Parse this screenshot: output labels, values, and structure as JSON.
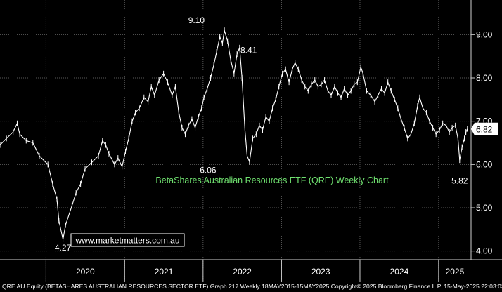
{
  "chart_data": {
    "type": "line",
    "title": "BetaShares Australian Resources ETF (QRE) Weekly Chart",
    "watermark": "www.marketmatters.com.au",
    "footer": "QRE AU Equity (BETASHARES AUSTRALIAN RESOURCES SECTOR ETF) Graph 217  Weekly 18MAY2015-15MAY2025 Copyright© 2025 Bloomberg Finance L.P. 15-May-2025 22:03:03",
    "y_ticks": [
      "9.00",
      "8.00",
      "7.00",
      "6.00",
      "5.00",
      "4.00"
    ],
    "ylim": [
      3.8,
      9.8
    ],
    "x_labels": [
      "2020",
      "2021",
      "2022",
      "2023",
      "2024",
      "2025"
    ],
    "last_value": "6.82",
    "annotations": [
      {
        "label": "9.10",
        "x": "2021-12-01",
        "y": 9.1
      },
      {
        "label": "8.41",
        "x": "2022-08-01",
        "y": 8.41
      },
      {
        "label": "6.06",
        "x": "2022-01-24",
        "y": 6.06
      },
      {
        "label": "4.27",
        "x": "2020-03-20",
        "y": 4.27
      },
      {
        "label": "5.82",
        "x": "2025-04-09",
        "y": 5.82
      }
    ],
    "series": [
      {
        "color": "#ffffff",
        "points": [
          [
            "2019-06-01",
            6.45
          ],
          [
            "2019-07-01",
            6.6
          ],
          [
            "2019-08-01",
            6.75
          ],
          [
            "2019-08-20",
            6.95
          ],
          [
            "2019-09-01",
            6.7
          ],
          [
            "2019-10-01",
            6.55
          ],
          [
            "2019-11-01",
            6.5
          ],
          [
            "2019-12-01",
            6.2
          ],
          [
            "2020-01-10",
            6.0
          ],
          [
            "2020-02-01",
            5.55
          ],
          [
            "2020-02-21",
            5.2
          ],
          [
            "2020-03-01",
            4.7
          ],
          [
            "2020-03-20",
            4.27
          ],
          [
            "2020-04-01",
            4.6
          ],
          [
            "2020-05-01",
            5.05
          ],
          [
            "2020-05-20",
            5.35
          ],
          [
            "2020-06-10",
            5.55
          ],
          [
            "2020-07-01",
            5.9
          ],
          [
            "2020-08-01",
            6.05
          ],
          [
            "2020-09-01",
            6.2
          ],
          [
            "2020-09-20",
            6.55
          ],
          [
            "2020-10-05",
            6.45
          ],
          [
            "2020-10-20",
            6.25
          ],
          [
            "2020-11-15",
            6.0
          ],
          [
            "2020-12-01",
            6.15
          ],
          [
            "2020-12-20",
            5.95
          ],
          [
            "2021-01-05",
            6.3
          ],
          [
            "2021-01-20",
            6.6
          ],
          [
            "2021-02-05",
            7.0
          ],
          [
            "2021-02-20",
            7.2
          ],
          [
            "2021-03-10",
            7.3
          ],
          [
            "2021-04-01",
            7.55
          ],
          [
            "2021-04-20",
            7.45
          ],
          [
            "2021-05-05",
            7.8
          ],
          [
            "2021-05-20",
            7.6
          ],
          [
            "2021-06-10",
            7.95
          ],
          [
            "2021-07-01",
            8.1
          ],
          [
            "2021-07-20",
            7.9
          ],
          [
            "2021-08-10",
            7.6
          ],
          [
            "2021-08-25",
            7.8
          ],
          [
            "2021-09-10",
            7.2
          ],
          [
            "2021-09-25",
            6.85
          ],
          [
            "2021-10-10",
            6.7
          ],
          [
            "2021-10-25",
            6.9
          ],
          [
            "2021-11-10",
            7.05
          ],
          [
            "2021-11-25",
            6.85
          ],
          [
            "2021-12-10",
            7.1
          ],
          [
            "2021-12-25",
            7.3
          ],
          [
            "2022-01-05",
            7.55
          ],
          [
            "2022-01-20",
            7.75
          ],
          [
            "2022-02-05",
            8.0
          ],
          [
            "2022-02-20",
            8.3
          ],
          [
            "2022-03-05",
            8.6
          ],
          [
            "2022-03-20",
            8.95
          ],
          [
            "2022-04-01",
            8.8
          ],
          [
            "2022-04-10",
            9.1
          ],
          [
            "2022-04-25",
            8.85
          ],
          [
            "2022-05-10",
            8.4
          ],
          [
            "2022-05-25",
            8.1
          ],
          [
            "2022-06-08",
            8.55
          ],
          [
            "2022-06-20",
            8.7
          ],
          [
            "2022-07-01",
            8.0
          ],
          [
            "2022-07-15",
            6.8
          ],
          [
            "2022-07-25",
            6.2
          ],
          [
            "2022-08-05",
            6.06
          ],
          [
            "2022-08-20",
            6.6
          ],
          [
            "2022-09-05",
            6.7
          ],
          [
            "2022-09-20",
            6.9
          ],
          [
            "2022-10-05",
            6.8
          ],
          [
            "2022-10-20",
            7.1
          ],
          [
            "2022-11-05",
            7.0
          ],
          [
            "2022-11-20",
            7.3
          ],
          [
            "2022-12-05",
            7.5
          ],
          [
            "2022-12-20",
            7.8
          ],
          [
            "2023-01-05",
            8.1
          ],
          [
            "2023-01-20",
            8.2
          ],
          [
            "2023-02-05",
            7.9
          ],
          [
            "2023-02-20",
            8.2
          ],
          [
            "2023-03-05",
            8.35
          ],
          [
            "2023-03-20",
            8.2
          ],
          [
            "2023-04-05",
            7.95
          ],
          [
            "2023-04-20",
            7.8
          ],
          [
            "2023-05-05",
            7.7
          ],
          [
            "2023-05-20",
            7.85
          ],
          [
            "2023-06-05",
            7.95
          ],
          [
            "2023-06-20",
            7.8
          ],
          [
            "2023-07-05",
            7.85
          ],
          [
            "2023-07-20",
            7.95
          ],
          [
            "2023-08-05",
            7.7
          ],
          [
            "2023-08-20",
            7.6
          ],
          [
            "2023-09-05",
            7.8
          ],
          [
            "2023-09-20",
            7.65
          ],
          [
            "2023-10-05",
            7.55
          ],
          [
            "2023-10-20",
            7.75
          ],
          [
            "2023-11-05",
            7.6
          ],
          [
            "2023-11-20",
            7.7
          ],
          [
            "2023-12-05",
            7.85
          ],
          [
            "2023-12-20",
            7.9
          ],
          [
            "2024-01-05",
            8.25
          ],
          [
            "2024-01-15",
            8.1
          ],
          [
            "2024-02-01",
            7.7
          ],
          [
            "2024-02-20",
            7.6
          ],
          [
            "2024-03-10",
            7.45
          ],
          [
            "2024-03-25",
            7.6
          ],
          [
            "2024-04-10",
            7.75
          ],
          [
            "2024-04-25",
            7.65
          ],
          [
            "2024-05-10",
            7.9
          ],
          [
            "2024-05-25",
            7.7
          ],
          [
            "2024-06-10",
            7.5
          ],
          [
            "2024-06-25",
            7.3
          ],
          [
            "2024-07-10",
            7.05
          ],
          [
            "2024-07-25",
            6.85
          ],
          [
            "2024-08-10",
            6.6
          ],
          [
            "2024-08-25",
            6.7
          ],
          [
            "2024-09-10",
            6.95
          ],
          [
            "2024-09-25",
            7.35
          ],
          [
            "2024-10-05",
            7.55
          ],
          [
            "2024-10-20",
            7.3
          ],
          [
            "2024-11-05",
            7.2
          ],
          [
            "2024-11-20",
            7.0
          ],
          [
            "2024-12-05",
            6.85
          ],
          [
            "2024-12-20",
            6.7
          ],
          [
            "2025-01-05",
            6.8
          ],
          [
            "2025-01-20",
            6.95
          ],
          [
            "2025-02-05",
            6.9
          ],
          [
            "2025-02-20",
            6.75
          ],
          [
            "2025-03-05",
            6.85
          ],
          [
            "2025-03-20",
            6.9
          ],
          [
            "2025-04-01",
            6.6
          ],
          [
            "2025-04-09",
            6.1
          ],
          [
            "2025-04-20",
            6.4
          ],
          [
            "2025-05-01",
            6.6
          ],
          [
            "2025-05-08",
            6.75
          ],
          [
            "2025-05-15",
            6.82
          ]
        ]
      }
    ]
  }
}
